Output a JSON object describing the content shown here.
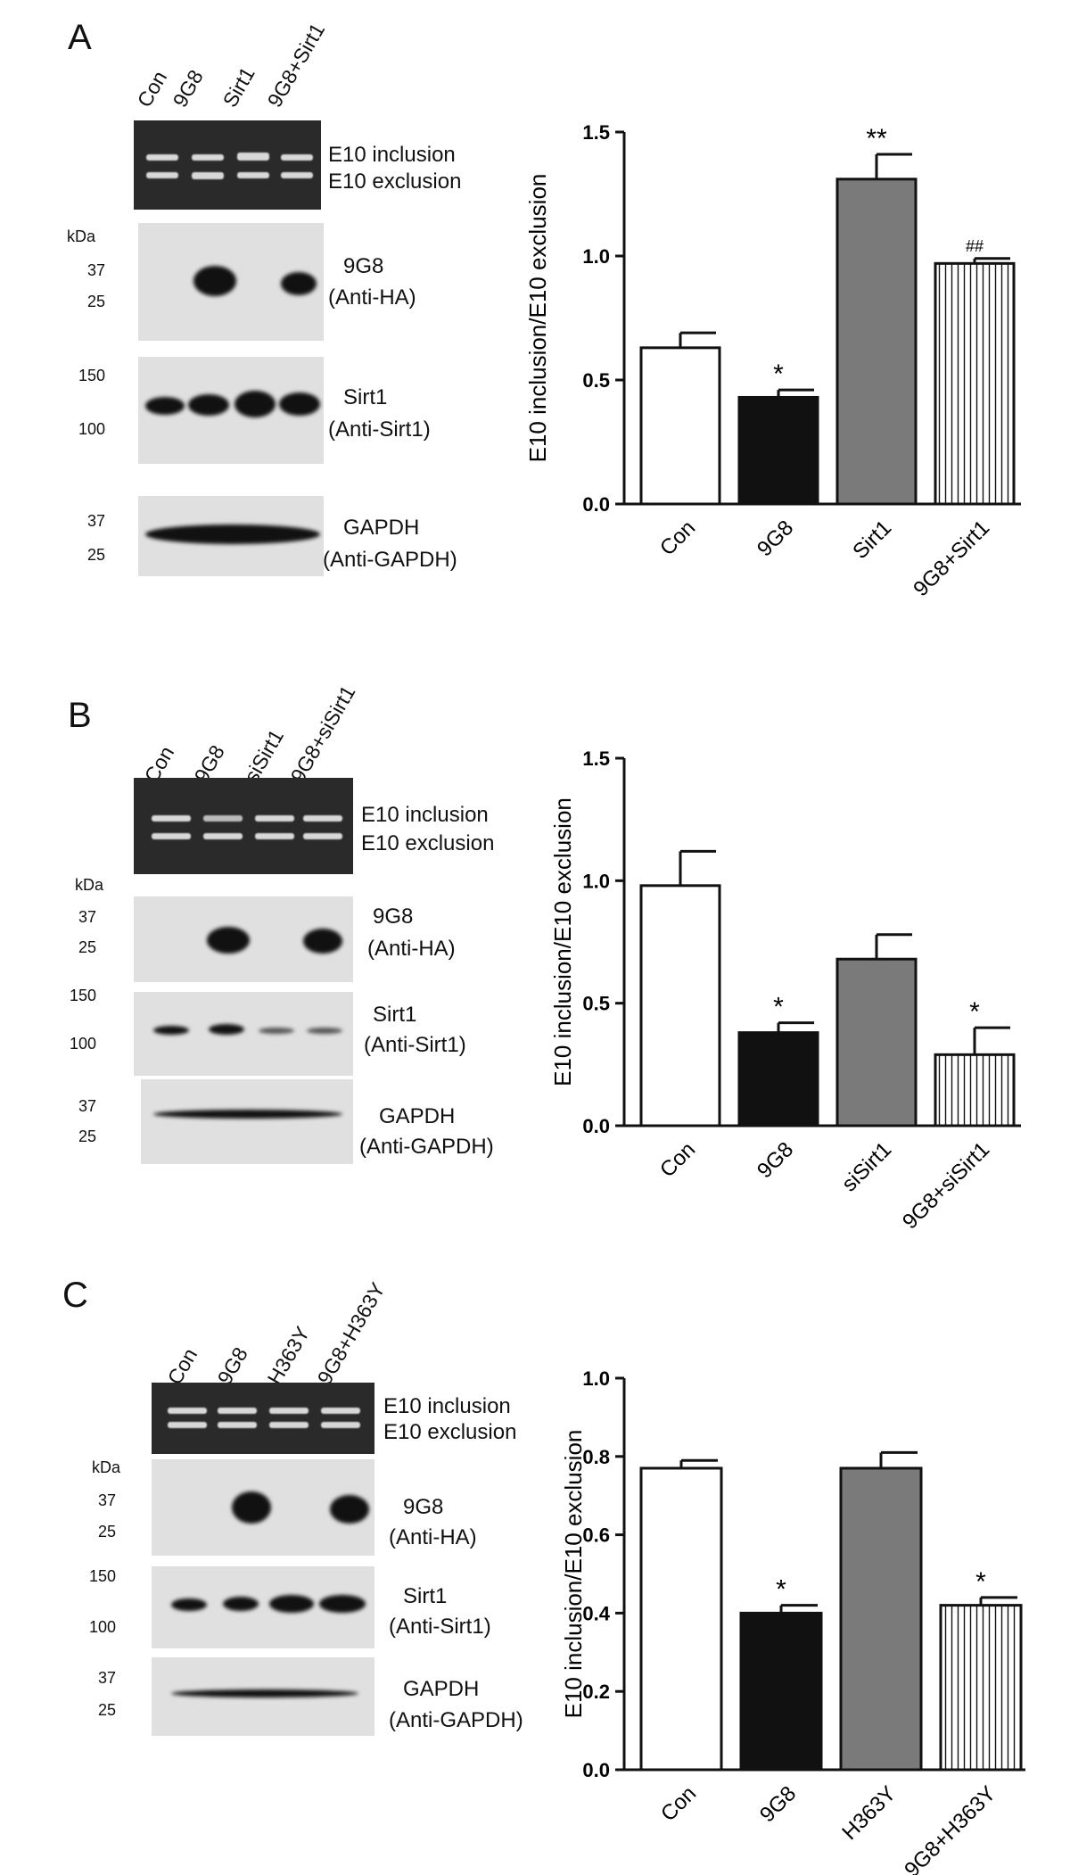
{
  "panels": [
    {
      "label": "A",
      "lanes": [
        "Con",
        "9G8",
        "Sirt1",
        "9G8+Sirt1"
      ],
      "gel_labels": [
        "E10 inclusion",
        "E10 exclusion"
      ],
      "kda": "kDa",
      "blots": [
        {
          "markers": [
            "37",
            "25"
          ],
          "name": "9G8",
          "antibody": "(Anti-HA)"
        },
        {
          "markers": [
            "150",
            "100"
          ],
          "name": "Sirt1",
          "antibody": "(Anti-Sirt1)"
        },
        {
          "markers": [
            "37",
            "25"
          ],
          "name": "GAPDH",
          "antibody": "(Anti-GAPDH)"
        }
      ]
    },
    {
      "label": "B",
      "lanes": [
        "Con",
        "9G8",
        "siSirt1",
        "9G8+siSirt1"
      ],
      "gel_labels": [
        "E10 inclusion",
        "E10 exclusion"
      ],
      "kda": "kDa",
      "blots": [
        {
          "markers": [
            "37",
            "25"
          ],
          "name": "9G8",
          "antibody": "(Anti-HA)"
        },
        {
          "markers": [
            "150",
            "100"
          ],
          "name": "Sirt1",
          "antibody": "(Anti-Sirt1)"
        },
        {
          "markers": [
            "37",
            "25"
          ],
          "name": "GAPDH",
          "antibody": "(Anti-GAPDH)"
        }
      ]
    },
    {
      "label": "C",
      "lanes": [
        "Con",
        "9G8",
        "H363Y",
        "9G8+H363Y"
      ],
      "gel_labels": [
        "E10 inclusion",
        "E10 exclusion"
      ],
      "kda": "kDa",
      "blots": [
        {
          "markers": [
            "37",
            "25"
          ],
          "name": "9G8",
          "antibody": "(Anti-HA)"
        },
        {
          "markers": [
            "150",
            "100"
          ],
          "name": "Sirt1",
          "antibody": "(Anti-Sirt1)"
        },
        {
          "markers": [
            "37",
            "25"
          ],
          "name": "GAPDH",
          "antibody": "(Anti-GAPDH)"
        }
      ]
    }
  ],
  "chart_data": [
    {
      "type": "bar",
      "categories": [
        "Con",
        "9G8",
        "Sirt1",
        "9G8+Sirt1"
      ],
      "values": [
        0.63,
        0.43,
        1.31,
        0.97
      ],
      "errors": [
        0.06,
        0.03,
        0.1,
        0.02
      ],
      "significance": [
        "",
        "*",
        "**",
        "##"
      ],
      "fills": [
        "white",
        "#111111",
        "#7a7a7a",
        "stripes"
      ],
      "ylabel": "E10 inclusion/E10 exclusion",
      "ylim": [
        0,
        1.5
      ],
      "yticks": [
        "0.0",
        "0.5",
        "1.0",
        "1.5"
      ]
    },
    {
      "type": "bar",
      "categories": [
        "Con",
        "9G8",
        "siSirt1",
        "9G8+siSirt1"
      ],
      "values": [
        0.98,
        0.38,
        0.68,
        0.29
      ],
      "errors": [
        0.14,
        0.04,
        0.1,
        0.11
      ],
      "significance": [
        "",
        "*",
        "",
        "*"
      ],
      "fills": [
        "white",
        "#111111",
        "#7a7a7a",
        "stripes"
      ],
      "ylabel": "E10 inclusion/E10 exclusion",
      "ylim": [
        0,
        1.5
      ],
      "yticks": [
        "0.0",
        "0.5",
        "1.0",
        "1.5"
      ]
    },
    {
      "type": "bar",
      "categories": [
        "Con",
        "9G8",
        "H363Y",
        "9G8+H363Y"
      ],
      "values": [
        0.77,
        0.4,
        0.77,
        0.42
      ],
      "errors": [
        0.02,
        0.02,
        0.04,
        0.02
      ],
      "significance": [
        "",
        "*",
        "",
        "*"
      ],
      "fills": [
        "white",
        "#111111",
        "#7a7a7a",
        "stripes"
      ],
      "ylabel": "E10 inclusion/E10 exclusion",
      "ylim": [
        0,
        1.0
      ],
      "yticks": [
        "0.0",
        "0.2",
        "0.4",
        "0.6",
        "0.8",
        "1.0"
      ]
    }
  ]
}
